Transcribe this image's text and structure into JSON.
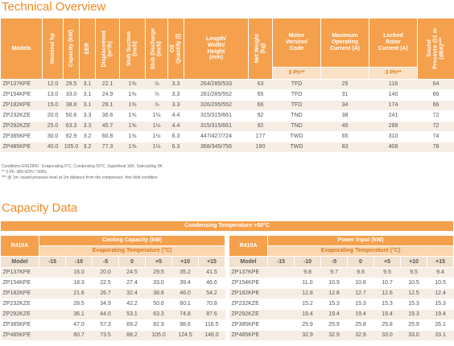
{
  "header": {
    "title": "Technical Overview"
  },
  "overview_table": {
    "columns": [
      "Models",
      "Nominal hp",
      "Capacity (kW)",
      "EER",
      "Displacement\n(m³/h)",
      "Stub Suction\n(inch)",
      "Stub Discharge\n(inch)",
      "Oil\nQuantity (l)",
      "Length/\nWidth/\nHeight\n(mm)",
      "Net Weight\n(kg)",
      "Motor\nVersion/\nCode",
      "Maximum\nOperating\nCurrent (A)",
      "Locked\nRotor\nCurrent (A)",
      "Sound\nPressure @1 m\n(dBA)***"
    ],
    "subheaders": [
      "3 Ph**",
      null,
      "3 Ph**"
    ],
    "rows": [
      [
        "ZP137KPE",
        "12.0",
        "29.5",
        "3.1",
        "22.1",
        "1⅜",
        "⅞",
        "3.3",
        "264/285/533",
        "63",
        "TFD",
        "25",
        "118",
        "64"
      ],
      [
        "ZP154KPE",
        "13.0",
        "33.0",
        "3.1",
        "24.9",
        "1⅜",
        "⅞",
        "3.3",
        "281/285/552",
        "65",
        "TFD",
        "31",
        "140",
        "66"
      ],
      [
        "ZP182KPE",
        "15.0",
        "38.8",
        "3.1",
        "29.1",
        "1⅜",
        "⅞",
        "3.3",
        "326/295/552",
        "66",
        "TFD",
        "34",
        "174",
        "66"
      ],
      [
        "ZP232KZE",
        "20.0",
        "50.6",
        "3.3",
        "36.6",
        "1⅝",
        "1⅛",
        "4.4",
        "315/315/661",
        "92",
        "TND",
        "38",
        "241",
        "72"
      ],
      [
        "ZP292KZE",
        "25.0",
        "63.3",
        "3.3",
        "45.7",
        "1⅝",
        "1⅛",
        "4.4",
        "315/315/661",
        "92",
        "TND",
        "49",
        "288",
        "72"
      ],
      [
        "ZP385KPE",
        "30.0",
        "82.9",
        "3.2",
        "60.8",
        "1⅝",
        "1⅛",
        "6.3",
        "447/427/724",
        "177",
        "TWD",
        "65",
        "310",
        "74"
      ],
      [
        "ZP485KPE",
        "40.0",
        "105.0",
        "3.2",
        "77.3",
        "1⅝",
        "1⅛",
        "6.3",
        "368/345/756",
        "190",
        "TWD",
        "83",
        "408",
        "78"
      ]
    ],
    "notes": [
      "Conditions EN12900 : Evaporating 5°C, Condensing 50°C, Superheat 10K, Subcooling 0K",
      "** 3 Ph: 380-420V / 50Hz",
      "*** @ 1m: sound pressure level at 1m distance from the compressor, free field condition"
    ]
  },
  "capacity": {
    "title": "Capacity Data",
    "condition": "Condensing Temperature +50°C",
    "tables": [
      {
        "refrigerant": "R410A",
        "quantity": "Cooling Capacity (kW)",
        "axis": "Evaporating Temperature (°C)",
        "model_header": "Model",
        "temperatures": [
          "-15",
          "-10",
          "-5",
          "0",
          "+5",
          "+10",
          "+15"
        ],
        "rows": [
          {
            "model": "ZP137KPE",
            "values": [
              null,
              "16.0",
              "20.0",
              "24.5",
              "29.5",
              "35.2",
              "41.5"
            ]
          },
          {
            "model": "ZP154KPE",
            "values": [
              null,
              "18.3",
              "22.5",
              "27.4",
              "33.0",
              "39.4",
              "46.6"
            ]
          },
          {
            "model": "ZP182KPE",
            "values": [
              null,
              "21.6",
              "26.7",
              "32.4",
              "38.8",
              "46.0",
              "54.2"
            ]
          },
          {
            "model": "ZP232KZE",
            "values": [
              null,
              "28.5",
              "34.9",
              "42.2",
              "50.6",
              "60.1",
              "70.8"
            ]
          },
          {
            "model": "ZP292KZE",
            "values": [
              null,
              "36.1",
              "44.0",
              "53.1",
              "63.3",
              "74.8",
              "87.6"
            ]
          },
          {
            "model": "ZP385KPE",
            "values": [
              null,
              "47.0",
              "57.3",
              "69.2",
              "82.9",
              "98.6",
              "116.5"
            ]
          },
          {
            "model": "ZP485KPE",
            "values": [
              null,
              "60.7",
              "73.5",
              "88.2",
              "105.0",
              "124.5",
              "146.0"
            ]
          }
        ]
      },
      {
        "refrigerant": "R410A",
        "quantity": "Power Input (kW)",
        "axis": "Evaporating Temperature (°C)",
        "model_header": "Model",
        "temperatures": [
          "-15",
          "-10",
          "-5",
          "0",
          "+5",
          "+10",
          "+15"
        ],
        "rows": [
          {
            "model": "ZP137KPE",
            "values": [
              null,
              "9.8",
              "9.7",
              "9.6",
              "9.5",
              "9.5",
              "9.4"
            ]
          },
          {
            "model": "ZP154KPE",
            "values": [
              null,
              "11.0",
              "10.9",
              "10.8",
              "10.7",
              "10.5",
              "10.5"
            ]
          },
          {
            "model": "ZP182KPE",
            "values": [
              null,
              "12.8",
              "12.8",
              "12.7",
              "12.6",
              "12.5",
              "12.4"
            ]
          },
          {
            "model": "ZP232KZE",
            "values": [
              null,
              "15.2",
              "15.3",
              "15.3",
              "15.3",
              "15.3",
              "15.3"
            ]
          },
          {
            "model": "ZP292KZE",
            "values": [
              null,
              "19.4",
              "19.4",
              "19.4",
              "19.4",
              "19.3",
              "19.4"
            ]
          },
          {
            "model": "ZP385KPE",
            "values": [
              null,
              "25.9",
              "25.9",
              "25.8",
              "25.8",
              "25.9",
              "26.1"
            ]
          },
          {
            "model": "ZP485KPE",
            "values": [
              null,
              "32.9",
              "32.9",
              "32.9",
              "33.0",
              "33.0",
              "33.1"
            ]
          }
        ]
      }
    ]
  }
}
